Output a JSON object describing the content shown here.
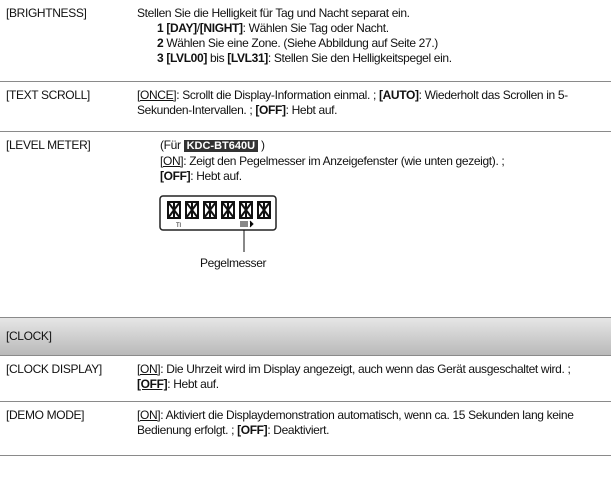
{
  "rows": [
    {
      "label": "[BRIGHTNESS]",
      "intro": "Stellen Sie die Helligkeit für Tag und Nacht separat ein.",
      "steps": [
        [
          "1",
          "[DAY]",
          "/",
          "[NIGHT]",
          ": Wählen Sie Tag oder Nacht."
        ],
        [
          "2",
          "Wählen Sie eine Zone. (Siehe Abbildung auf Seite 27.)"
        ],
        [
          "3",
          "[LVL00]",
          " bis ",
          "[LVL31]",
          ": Stellen Sie den Helligkeitspegel ein."
        ]
      ]
    },
    {
      "label": "[TEXT SCROLL]",
      "text": [
        "[ONCE]",
        ": Scrollt die Display-Information einmal. ; ",
        "[AUTO]",
        ": Wiederholt das Scrollen in 5-Sekunden-Intervallen. ; ",
        "[OFF]",
        ": Hebt auf."
      ]
    },
    {
      "label": "[LEVEL METER]",
      "note": [
        "(Für ",
        "KDC-BT640U",
        " )"
      ],
      "text": [
        "[ON]",
        ": Zeigt den Pegelmesser im Anzeigefenster (wie unten gezeigt). ;",
        "[OFF]",
        ": Hebt auf."
      ],
      "caption": "Pegelmesser"
    },
    {
      "section": "[CLOCK]"
    },
    {
      "label": "[CLOCK DISPLAY]",
      "text": [
        "[ON]",
        ": Die Uhrzeit wird im Display angezeigt, auch wenn das Gerät ausgeschaltet wird. ; ",
        "[OFF]",
        ": Hebt auf."
      ]
    },
    {
      "label": "[DEMO MODE]",
      "text": [
        "[ON]",
        ": Aktiviert die Displaydemonstration automatisch, wenn ca. 15 Sekunden lang keine Bedienung erfolgt. ; ",
        "[OFF]",
        ": Deaktiviert."
      ]
    }
  ]
}
